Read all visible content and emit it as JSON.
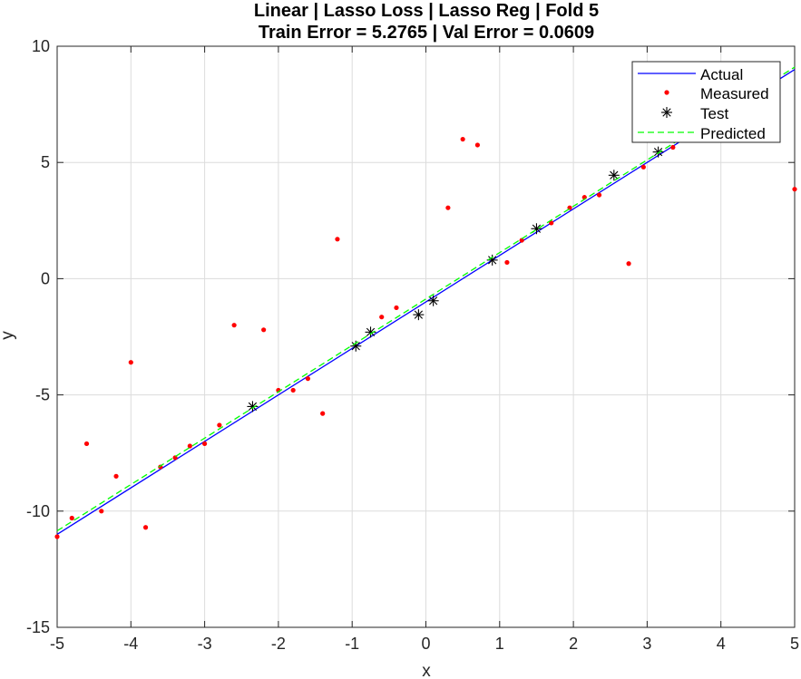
{
  "chart_data": {
    "type": "scatter",
    "title_line1": "Linear | Lasso Loss | Lasso Reg | Fold 5",
    "title_line2": "Train Error = 5.2765 | Val Error = 0.0609",
    "xlabel": "x",
    "ylabel": "y",
    "xlim": [
      -5,
      5
    ],
    "ylim": [
      -15,
      10
    ],
    "xticks": [
      -5,
      -4,
      -3,
      -2,
      -1,
      0,
      1,
      2,
      3,
      4,
      5
    ],
    "yticks": [
      -15,
      -10,
      -5,
      0,
      5,
      10
    ],
    "grid": true,
    "legend_position": "top-right",
    "series": [
      {
        "name": "Actual",
        "kind": "line",
        "color": "#0000ff",
        "style": "solid",
        "x": [
          -5,
          5
        ],
        "y": [
          -11.0,
          9.0
        ]
      },
      {
        "name": "Measured",
        "kind": "points",
        "color": "#ff0000",
        "marker": "dot",
        "x": [
          -5.0,
          -4.8,
          -4.6,
          -4.4,
          -4.2,
          -4.0,
          -3.8,
          -3.6,
          -3.4,
          -3.2,
          -3.0,
          -2.8,
          -2.6,
          -2.2,
          -2.0,
          -1.8,
          -1.6,
          -1.4,
          -1.2,
          -0.6,
          -0.4,
          0.3,
          0.5,
          0.7,
          1.1,
          1.3,
          1.7,
          1.95,
          2.15,
          2.35,
          2.75,
          2.95,
          3.35,
          5.0
        ],
        "y": [
          -11.1,
          -10.3,
          -7.1,
          -10.0,
          -8.5,
          -3.6,
          -10.7,
          -8.1,
          -7.7,
          -7.2,
          -7.1,
          -6.3,
          -2.0,
          -2.2,
          -4.8,
          -4.8,
          -4.3,
          -5.8,
          1.7,
          -1.65,
          -1.25,
          3.05,
          6.0,
          5.75,
          0.7,
          1.65,
          2.4,
          3.05,
          3.5,
          3.6,
          0.65,
          4.8,
          5.65,
          3.85
        ]
      },
      {
        "name": "Test",
        "kind": "points",
        "color": "#000000",
        "marker": "asterisk",
        "x": [
          -2.35,
          -0.95,
          -0.75,
          -0.1,
          0.1,
          0.9,
          1.5,
          2.55,
          3.15
        ],
        "y": [
          -5.5,
          -2.9,
          -2.3,
          -1.55,
          -0.95,
          0.8,
          2.15,
          4.45,
          5.45
        ]
      },
      {
        "name": "Predicted",
        "kind": "line",
        "color": "#00ff00",
        "style": "dashed",
        "x": [
          -5,
          5
        ],
        "y": [
          -10.85,
          9.1
        ]
      }
    ]
  }
}
